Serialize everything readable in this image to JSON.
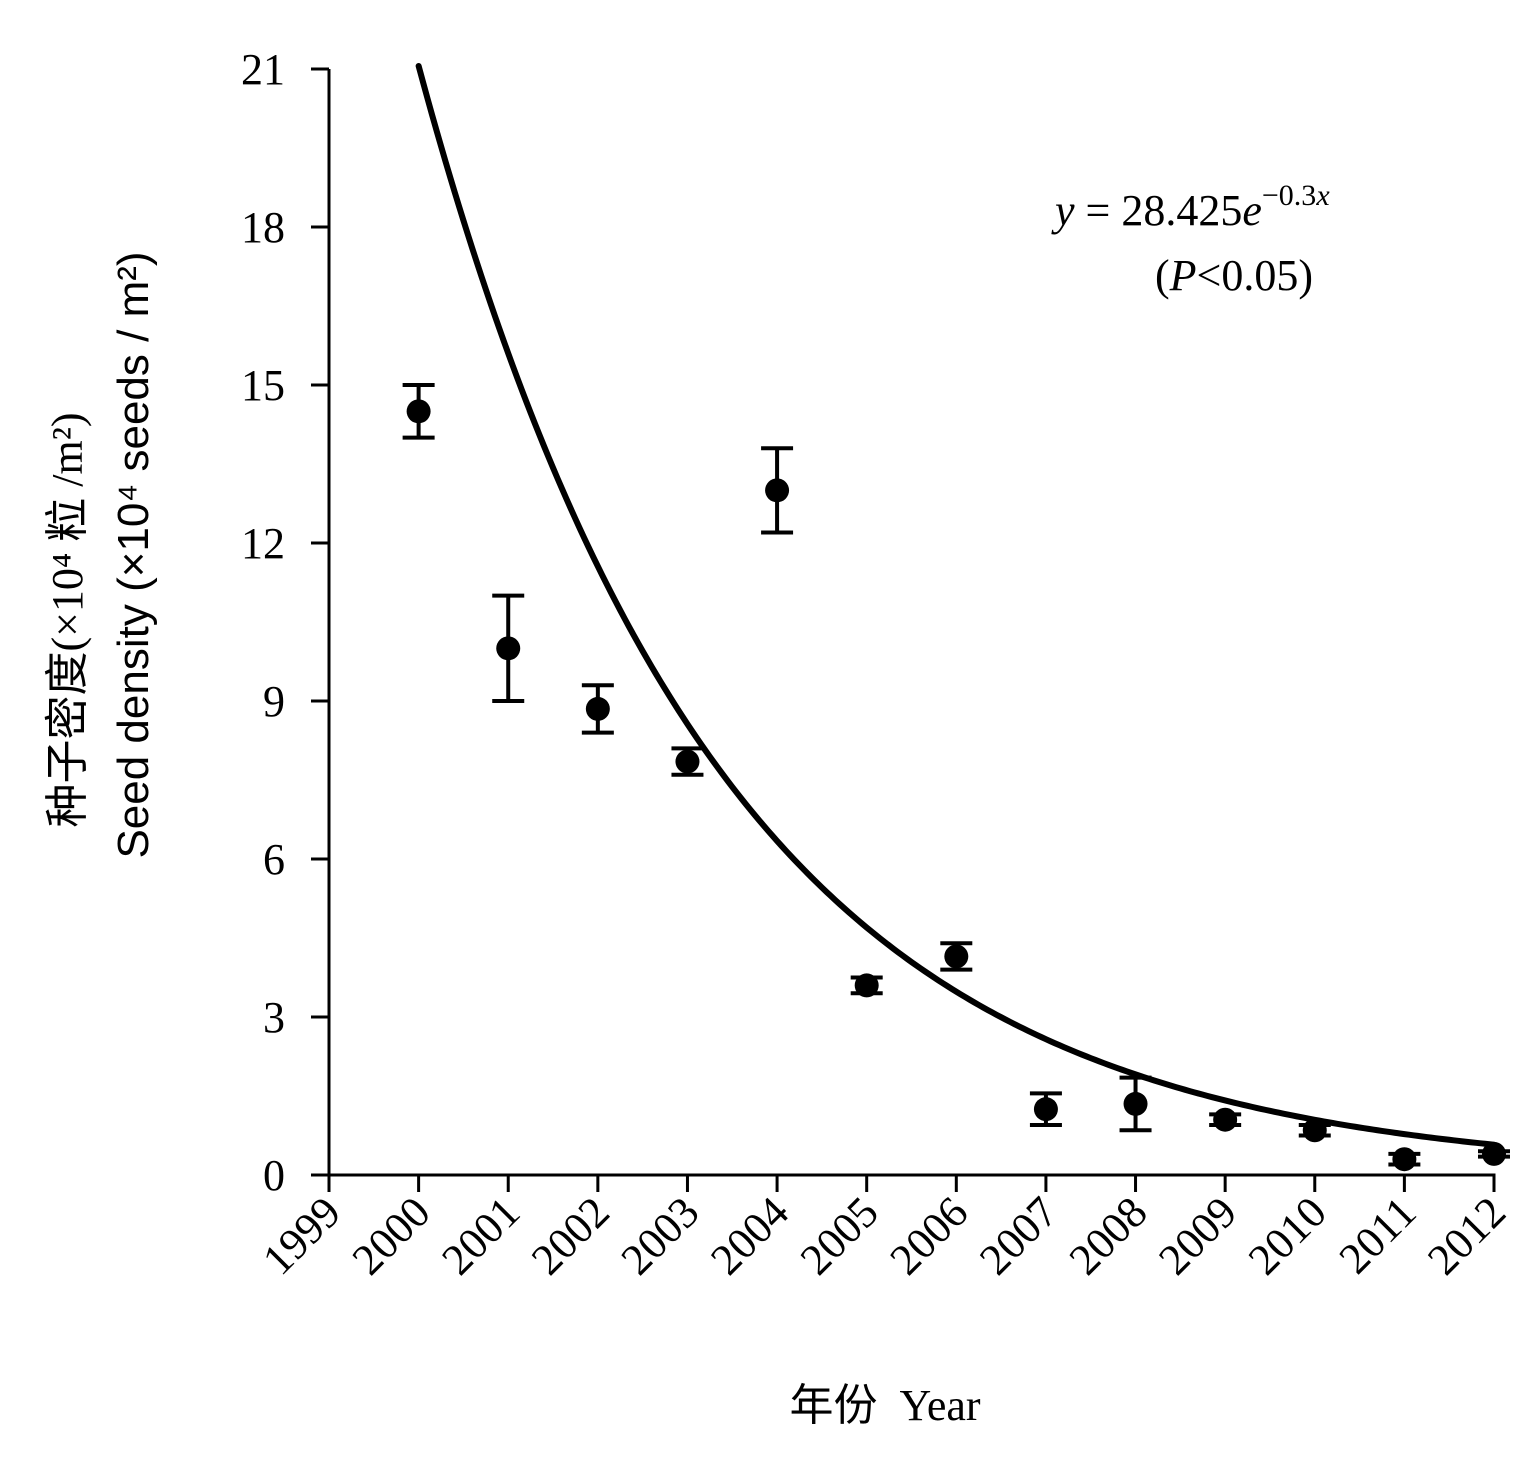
{
  "chart_data": {
    "type": "scatter",
    "xlabel": "年份  Year",
    "ylabel_lines": [
      "种子密度(×10⁴ 粒 /m²)",
      "Seed density (×10⁴ seeds / m²)"
    ],
    "xlim": [
      1999,
      2012
    ],
    "ylim": [
      0,
      21
    ],
    "x_ticks": [
      1999,
      2000,
      2001,
      2002,
      2003,
      2004,
      2005,
      2006,
      2007,
      2008,
      2009,
      2010,
      2011,
      2012
    ],
    "y_ticks": [
      0,
      3,
      6,
      9,
      12,
      15,
      18,
      21
    ],
    "grid": false,
    "series": [
      {
        "points": [
          {
            "x": 2000,
            "y": 14.5,
            "err": 0.5
          },
          {
            "x": 2001,
            "y": 10.0,
            "err": 1.0
          },
          {
            "x": 2002,
            "y": 8.85,
            "err": 0.45
          },
          {
            "x": 2003,
            "y": 7.85,
            "err": 0.25
          },
          {
            "x": 2004,
            "y": 13.0,
            "err": 0.8
          },
          {
            "x": 2005,
            "y": 3.6,
            "err": 0.15
          },
          {
            "x": 2006,
            "y": 4.15,
            "err": 0.25
          },
          {
            "x": 2007,
            "y": 1.25,
            "err": 0.3
          },
          {
            "x": 2008,
            "y": 1.35,
            "err": 0.5
          },
          {
            "x": 2009,
            "y": 1.05,
            "err": 0.1
          },
          {
            "x": 2010,
            "y": 0.85,
            "err": 0.1
          },
          {
            "x": 2011,
            "y": 0.3,
            "err": 0.1
          },
          {
            "x": 2012,
            "y": 0.4,
            "err": 0.05
          }
        ]
      }
    ],
    "fit": {
      "a": 28.425,
      "b": -0.3,
      "x_origin": 1999,
      "x_range": [
        2000,
        2012
      ]
    },
    "annotation": {
      "y_var": "y",
      "equals": " = 28.425",
      "e_var": "e",
      "exponent": "−0.3",
      "exp_var": "x",
      "p_open": "(",
      "p_var": "P",
      "p_rest": "<0.05)"
    }
  }
}
